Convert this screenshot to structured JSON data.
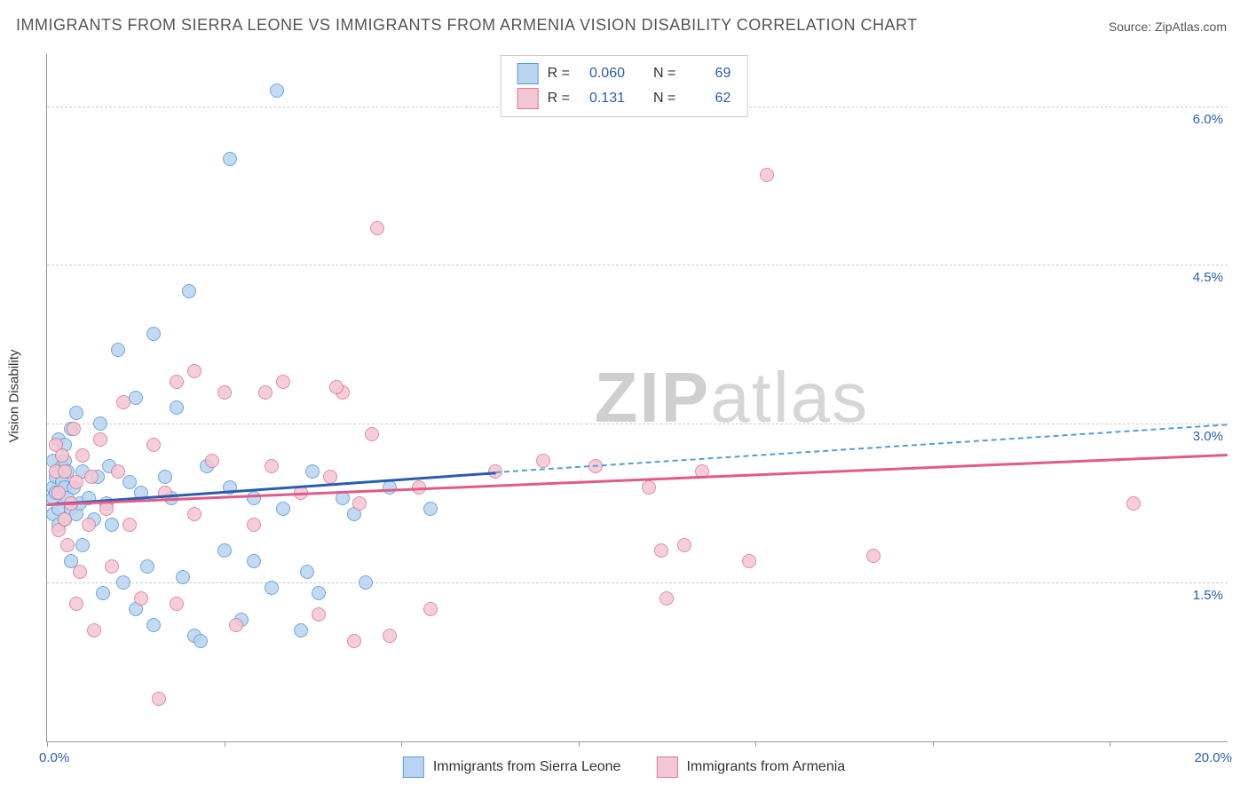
{
  "title": "IMMIGRANTS FROM SIERRA LEONE VS IMMIGRANTS FROM ARMENIA VISION DISABILITY CORRELATION CHART",
  "source": "Source: ZipAtlas.com",
  "watermark_bold": "ZIP",
  "watermark_light": "atlas",
  "chart": {
    "type": "scatter",
    "background_color": "#ffffff",
    "grid_color": "#cccccc",
    "axis_color": "#999999",
    "title_color": "#555555",
    "label_color_blue": "#2a5db0",
    "y_title": "Vision Disability",
    "xlim": [
      0.0,
      20.0
    ],
    "ylim": [
      0.0,
      6.5
    ],
    "y_gridlines": [
      1.5,
      3.0,
      4.5,
      6.0
    ],
    "y_labels": {
      "1.5": "1.5%",
      "3.0": "3.0%",
      "4.5": "4.5%",
      "6.0": "6.0%"
    },
    "x_ticks": [
      0.0,
      3.0,
      6.0,
      9.0,
      12.0,
      15.0,
      18.0
    ],
    "x_min_label": "0.0%",
    "x_max_label": "20.0%",
    "series": [
      {
        "name": "Immigrants from Sierra Leone",
        "fill": "#b8d4f0",
        "stroke": "#5a9bd4",
        "line_solid_color": "#2a5db0",
        "R": "0.060",
        "N": "69",
        "trend_solid": {
          "x1": 0.0,
          "y1": 2.25,
          "x2": 7.6,
          "y2": 2.55
        },
        "trend_dashed": {
          "x1": 7.6,
          "y1": 2.55,
          "x2": 20.0,
          "y2": 3.0
        },
        "points": [
          [
            0.1,
            2.65
          ],
          [
            0.1,
            2.4
          ],
          [
            0.1,
            2.3
          ],
          [
            0.1,
            2.15
          ],
          [
            0.15,
            2.5
          ],
          [
            0.15,
            2.35
          ],
          [
            0.2,
            2.85
          ],
          [
            0.2,
            2.2
          ],
          [
            0.2,
            2.05
          ],
          [
            0.25,
            2.6
          ],
          [
            0.25,
            2.45
          ],
          [
            0.3,
            2.8
          ],
          [
            0.3,
            2.65
          ],
          [
            0.3,
            2.4
          ],
          [
            0.3,
            2.1
          ],
          [
            0.35,
            2.3
          ],
          [
            0.35,
            2.55
          ],
          [
            0.4,
            2.2
          ],
          [
            0.4,
            2.95
          ],
          [
            0.4,
            1.7
          ],
          [
            0.45,
            2.4
          ],
          [
            0.5,
            2.15
          ],
          [
            0.5,
            3.1
          ],
          [
            0.55,
            2.25
          ],
          [
            0.6,
            2.55
          ],
          [
            0.6,
            1.85
          ],
          [
            0.7,
            2.3
          ],
          [
            0.8,
            2.1
          ],
          [
            0.85,
            2.5
          ],
          [
            0.9,
            3.0
          ],
          [
            0.95,
            1.4
          ],
          [
            1.0,
            2.25
          ],
          [
            1.05,
            2.6
          ],
          [
            1.1,
            2.05
          ],
          [
            1.2,
            3.7
          ],
          [
            1.3,
            1.5
          ],
          [
            1.4,
            2.45
          ],
          [
            1.5,
            3.25
          ],
          [
            1.5,
            1.25
          ],
          [
            1.6,
            2.35
          ],
          [
            1.7,
            1.65
          ],
          [
            1.8,
            3.85
          ],
          [
            1.8,
            1.1
          ],
          [
            2.0,
            2.5
          ],
          [
            2.1,
            2.3
          ],
          [
            2.2,
            3.15
          ],
          [
            2.3,
            1.55
          ],
          [
            2.4,
            4.25
          ],
          [
            2.5,
            1.0
          ],
          [
            2.6,
            0.95
          ],
          [
            2.7,
            2.6
          ],
          [
            3.0,
            1.8
          ],
          [
            3.1,
            2.4
          ],
          [
            3.1,
            5.5
          ],
          [
            3.3,
            1.15
          ],
          [
            3.5,
            2.3
          ],
          [
            3.5,
            1.7
          ],
          [
            3.8,
            1.45
          ],
          [
            3.9,
            6.15
          ],
          [
            4.0,
            2.2
          ],
          [
            4.3,
            1.05
          ],
          [
            4.4,
            1.6
          ],
          [
            4.5,
            2.55
          ],
          [
            4.6,
            1.4
          ],
          [
            5.0,
            2.3
          ],
          [
            5.2,
            2.15
          ],
          [
            5.4,
            1.5
          ],
          [
            5.8,
            2.4
          ],
          [
            6.5,
            2.2
          ]
        ]
      },
      {
        "name": "Immigrants from Armenia",
        "fill": "#f5c6d3",
        "stroke": "#d87a9a",
        "line_solid_color": "#e15a8a",
        "R": "0.131",
        "N": "62",
        "trend_solid": {
          "x1": 0.0,
          "y1": 2.25,
          "x2": 20.0,
          "y2": 2.72
        },
        "points": [
          [
            0.15,
            2.8
          ],
          [
            0.15,
            2.55
          ],
          [
            0.2,
            2.0
          ],
          [
            0.2,
            2.35
          ],
          [
            0.25,
            2.7
          ],
          [
            0.3,
            2.1
          ],
          [
            0.3,
            2.55
          ],
          [
            0.35,
            1.85
          ],
          [
            0.4,
            2.25
          ],
          [
            0.45,
            2.95
          ],
          [
            0.5,
            2.45
          ],
          [
            0.5,
            1.3
          ],
          [
            0.55,
            1.6
          ],
          [
            0.6,
            2.7
          ],
          [
            0.7,
            2.05
          ],
          [
            0.75,
            2.5
          ],
          [
            0.8,
            1.05
          ],
          [
            0.9,
            2.85
          ],
          [
            1.0,
            2.2
          ],
          [
            1.1,
            1.65
          ],
          [
            1.2,
            2.55
          ],
          [
            1.3,
            3.2
          ],
          [
            1.4,
            2.05
          ],
          [
            1.6,
            1.35
          ],
          [
            1.8,
            2.8
          ],
          [
            2.0,
            2.35
          ],
          [
            2.2,
            3.4
          ],
          [
            2.2,
            1.3
          ],
          [
            2.5,
            2.15
          ],
          [
            2.5,
            3.5
          ],
          [
            2.8,
            2.65
          ],
          [
            3.0,
            3.3
          ],
          [
            3.2,
            1.1
          ],
          [
            3.5,
            2.05
          ],
          [
            3.8,
            2.6
          ],
          [
            4.0,
            3.4
          ],
          [
            4.3,
            2.35
          ],
          [
            4.6,
            1.2
          ],
          [
            4.8,
            2.5
          ],
          [
            5.0,
            3.3
          ],
          [
            5.2,
            0.95
          ],
          [
            5.3,
            2.25
          ],
          [
            5.5,
            2.9
          ],
          [
            5.6,
            4.85
          ],
          [
            5.8,
            1.0
          ],
          [
            6.3,
            2.4
          ],
          [
            6.5,
            1.25
          ],
          [
            7.6,
            2.55
          ],
          [
            8.4,
            2.65
          ],
          [
            9.3,
            2.6
          ],
          [
            10.2,
            2.4
          ],
          [
            10.4,
            1.8
          ],
          [
            10.5,
            1.35
          ],
          [
            10.8,
            1.85
          ],
          [
            11.1,
            2.55
          ],
          [
            11.9,
            1.7
          ],
          [
            12.2,
            5.35
          ],
          [
            14.0,
            1.75
          ],
          [
            18.4,
            2.25
          ],
          [
            1.9,
            0.4
          ],
          [
            3.7,
            3.3
          ],
          [
            4.9,
            3.35
          ]
        ]
      }
    ],
    "marker_radius": 7,
    "marker_stroke_width": 1.2,
    "line_width": 2.5
  },
  "stats_legend": {
    "r_prefix": "R =",
    "n_prefix": "N ="
  }
}
